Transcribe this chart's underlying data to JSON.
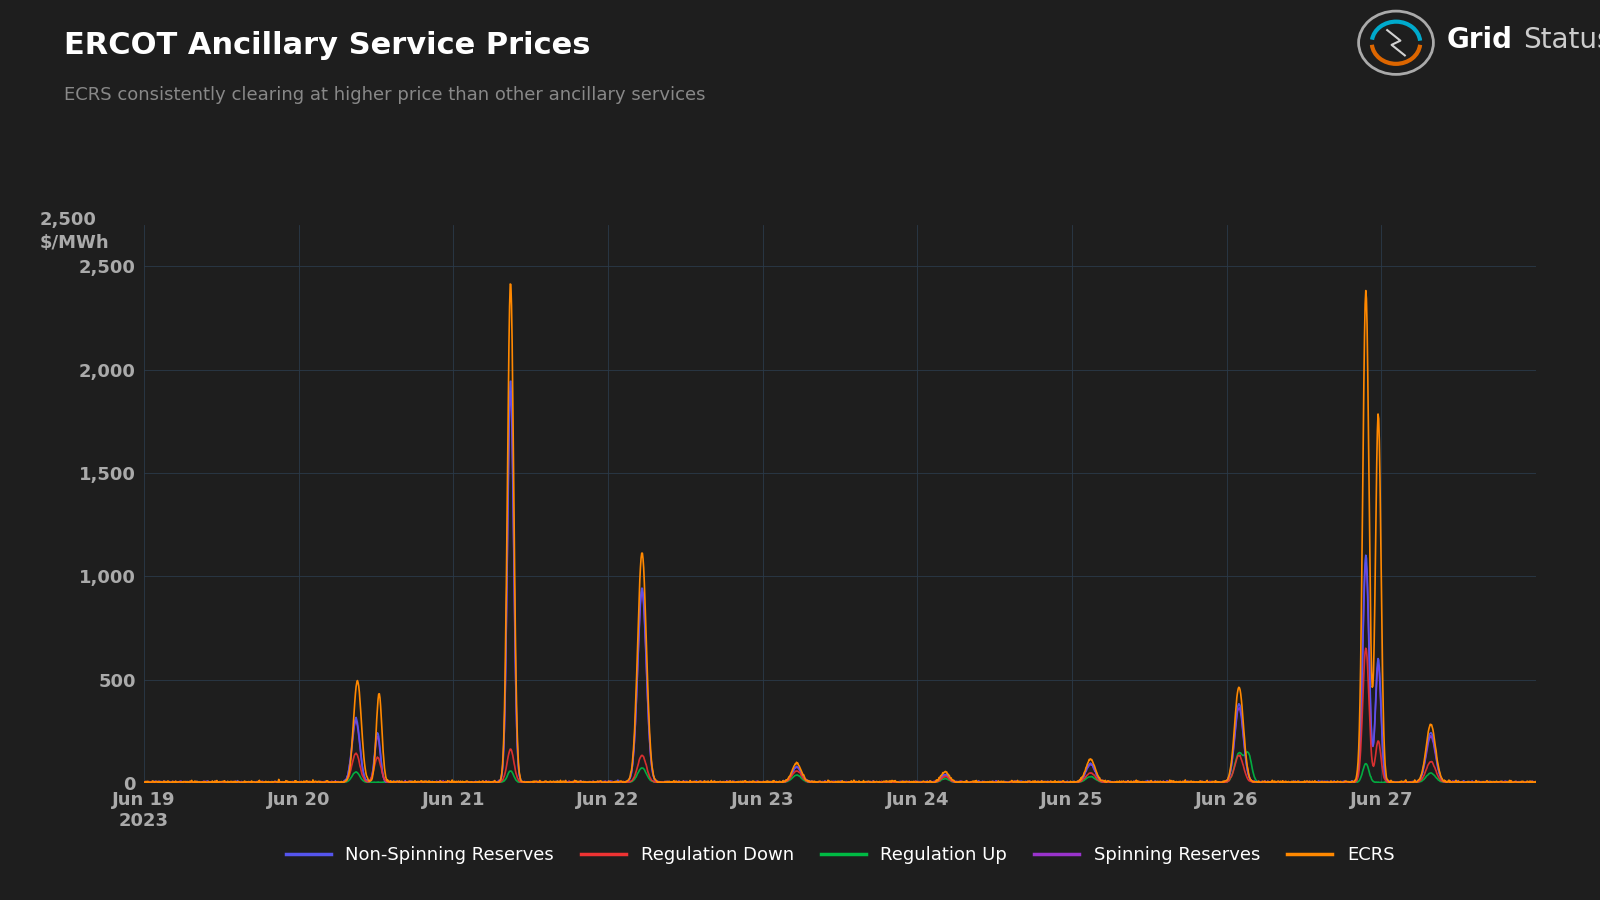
{
  "title": "ERCOT Ancillary Service Prices",
  "subtitle": "ECRS consistently clearing at higher price than other ancillary services",
  "background_color": "#1e1e1e",
  "grid_color": "#2a3a4a",
  "text_color": "#ffffff",
  "subtitle_color": "#888888",
  "tick_color": "#aaaaaa",
  "ylim": [
    0,
    2700
  ],
  "yticks": [
    0,
    500,
    1000,
    1500,
    2000,
    2500
  ],
  "ytick_labels": [
    "0",
    "500",
    "1,000",
    "1,500",
    "2,000",
    "2,500"
  ],
  "x_labels": [
    "Jun 19\n2023",
    "Jun 20",
    "Jun 21",
    "Jun 22",
    "Jun 23",
    "Jun 24",
    "Jun 25",
    "Jun 26",
    "Jun 27"
  ],
  "series": {
    "Non-Spinning Reserves": {
      "color": "#5555ee"
    },
    "Regulation Down": {
      "color": "#ee3333"
    },
    "Regulation Up": {
      "color": "#00bb44"
    },
    "Spinning Reserves": {
      "color": "#9933cc"
    },
    "ECRS": {
      "color": "#ff8800"
    }
  },
  "num_points": 2160
}
